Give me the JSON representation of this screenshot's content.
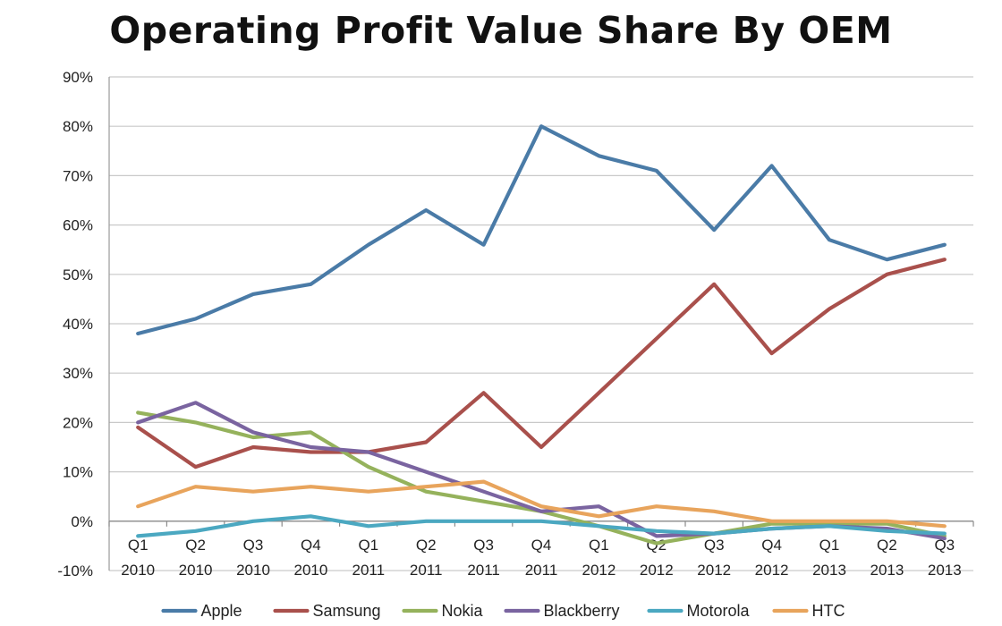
{
  "chart_data": {
    "type": "line",
    "title": "Operating Profit Value Share By OEM",
    "xlabel": "",
    "ylabel": "",
    "categories": [
      [
        "Q1",
        "2010"
      ],
      [
        "Q2",
        "2010"
      ],
      [
        "Q3",
        "2010"
      ],
      [
        "Q4",
        "2010"
      ],
      [
        "Q1",
        "2011"
      ],
      [
        "Q2",
        "2011"
      ],
      [
        "Q3",
        "2011"
      ],
      [
        "Q4",
        "2011"
      ],
      [
        "Q1",
        "2012"
      ],
      [
        "Q2",
        "2012"
      ],
      [
        "Q3",
        "2012"
      ],
      [
        "Q4",
        "2012"
      ],
      [
        "Q1",
        "2013"
      ],
      [
        "Q2",
        "2013"
      ],
      [
        "Q3",
        "2013"
      ]
    ],
    "ylim": [
      -10,
      90
    ],
    "yticks": [
      -10,
      0,
      10,
      20,
      30,
      40,
      50,
      60,
      70,
      80,
      90
    ],
    "ytick_labels": [
      "-10%",
      "0%",
      "10%",
      "20%",
      "30%",
      "40%",
      "50%",
      "60%",
      "70%",
      "80%",
      "90%"
    ],
    "grid": true,
    "legend_position": "bottom",
    "series": [
      {
        "name": "Apple",
        "color": "#4a7ba7",
        "values": [
          38,
          41,
          46,
          48,
          56,
          63,
          56,
          80,
          74,
          71,
          59,
          72,
          57,
          53,
          56
        ]
      },
      {
        "name": "Samsung",
        "color": "#a9504c",
        "values": [
          19,
          11,
          15,
          14,
          14,
          16,
          26,
          15,
          26,
          37,
          48,
          34,
          43,
          50,
          53
        ]
      },
      {
        "name": "Nokia",
        "color": "#95b25c",
        "values": [
          22,
          20,
          17,
          18,
          11,
          6,
          4,
          2,
          -1,
          -4.5,
          -2.5,
          -0.5,
          -0.5,
          -0.5,
          -3
        ]
      },
      {
        "name": "Blackberry",
        "color": "#7a64a0",
        "values": [
          20,
          24,
          18,
          15,
          14,
          10,
          6,
          2,
          3,
          -3,
          -2.5,
          -1.5,
          -1,
          -1.5,
          -3.5
        ]
      },
      {
        "name": "Motorola",
        "color": "#4ba8c1",
        "values": [
          -3,
          -2,
          0,
          1,
          -1,
          0,
          0,
          0,
          -1,
          -2,
          -2.5,
          -1.5,
          -1,
          -2,
          -2.5
        ]
      },
      {
        "name": "HTC",
        "color": "#e8a45c",
        "values": [
          3,
          7,
          6,
          7,
          6,
          7,
          8,
          3,
          1,
          3,
          2,
          0,
          0,
          0,
          -1
        ]
      }
    ]
  }
}
